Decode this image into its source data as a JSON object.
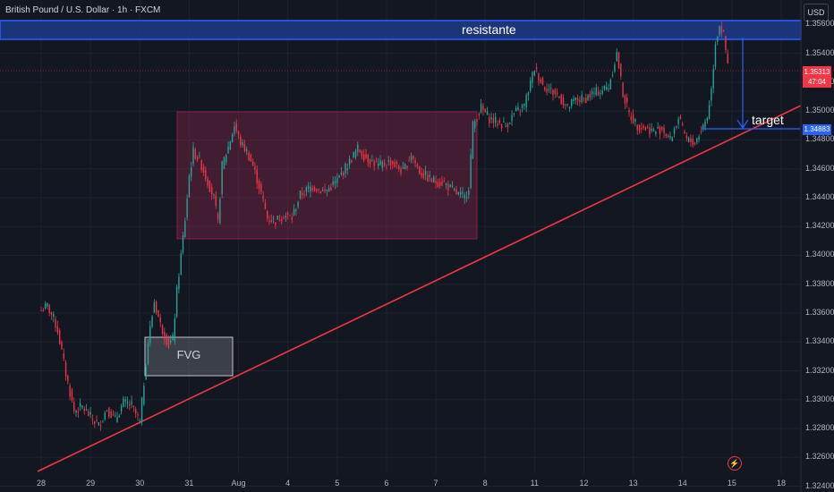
{
  "header": {
    "symbol_title": "British Pound / U.S. Dollar · 1h · FXCM",
    "currency_button": "USD"
  },
  "annotations": {
    "resistance_label": "resistante",
    "target_label": "target",
    "fvg_label": "FVG"
  },
  "price_scale": {
    "last_price": "1.35313",
    "countdown": "47:04",
    "target_price": "1.34883"
  },
  "colors": {
    "background": "#131722",
    "bull": "#26a69a",
    "bear": "#f23645",
    "trendline": "#f23645",
    "resistance_fill": "#1e3a8a",
    "resistance_border": "#2962ff",
    "range_box": "#9c2750",
    "fvg_box": "#5d606b"
  },
  "icons": {
    "replay": "lightning-icon"
  },
  "chart_data": {
    "type": "candlestick",
    "y_ticks": [
      "1.35600",
      "1.35400",
      "1.35200",
      "1.35000",
      "1.34800",
      "1.34600",
      "1.34400",
      "1.34200",
      "1.34000",
      "1.33800",
      "1.33600",
      "1.33400",
      "1.33200",
      "1.33000",
      "1.32800",
      "1.32600",
      "1.32400"
    ],
    "y_tick_values": [
      1.356,
      1.354,
      1.352,
      1.35,
      1.348,
      1.346,
      1.344,
      1.342,
      1.34,
      1.338,
      1.336,
      1.334,
      1.332,
      1.33,
      1.328,
      1.326,
      1.324
    ],
    "ylim": [
      1.3236,
      1.3577
    ],
    "x_ticks": [
      "28",
      "29",
      "30",
      "31",
      "Aug",
      "4",
      "5",
      "6",
      "7",
      "8",
      "11",
      "12",
      "13",
      "14",
      "15",
      "18"
    ],
    "x_tick_index": [
      0,
      24,
      48,
      72,
      96,
      120,
      144,
      168,
      192,
      216,
      240,
      264,
      288,
      312,
      336,
      360
    ],
    "path_points": [
      [
        0,
        1.3362
      ],
      [
        3,
        1.3365
      ],
      [
        6,
        1.3356
      ],
      [
        8,
        1.3348
      ],
      [
        12,
        1.3318
      ],
      [
        16,
        1.3292
      ],
      [
        20,
        1.3295
      ],
      [
        24,
        1.3288
      ],
      [
        28,
        1.3282
      ],
      [
        32,
        1.3294
      ],
      [
        36,
        1.3286
      ],
      [
        40,
        1.3298
      ],
      [
        44,
        1.3296
      ],
      [
        48,
        1.3284
      ],
      [
        50,
        1.3312
      ],
      [
        52,
        1.334
      ],
      [
        55,
        1.3368
      ],
      [
        58,
        1.3352
      ],
      [
        60,
        1.3345
      ],
      [
        62,
        1.3338
      ],
      [
        64,
        1.3342
      ],
      [
        66,
        1.3375
      ],
      [
        68,
        1.34
      ],
      [
        70,
        1.3425
      ],
      [
        72,
        1.3455
      ],
      [
        74,
        1.3472
      ],
      [
        77,
        1.3466
      ],
      [
        80,
        1.3455
      ],
      [
        84,
        1.344
      ],
      [
        86,
        1.3422
      ],
      [
        88,
        1.3462
      ],
      [
        91,
        1.3475
      ],
      [
        94,
        1.349
      ],
      [
        97,
        1.3478
      ],
      [
        100,
        1.3472
      ],
      [
        103,
        1.3462
      ],
      [
        106,
        1.3448
      ],
      [
        110,
        1.3426
      ],
      [
        114,
        1.3424
      ],
      [
        118,
        1.3428
      ],
      [
        122,
        1.3426
      ],
      [
        126,
        1.3442
      ],
      [
        132,
        1.3448
      ],
      [
        138,
        1.3444
      ],
      [
        144,
        1.3452
      ],
      [
        150,
        1.3465
      ],
      [
        154,
        1.3474
      ],
      [
        158,
        1.3468
      ],
      [
        164,
        1.3462
      ],
      [
        170,
        1.3465
      ],
      [
        176,
        1.3458
      ],
      [
        180,
        1.347
      ],
      [
        184,
        1.3458
      ],
      [
        190,
        1.3452
      ],
      [
        196,
        1.345
      ],
      [
        202,
        1.3443
      ],
      [
        206,
        1.344
      ],
      [
        208,
        1.3448
      ],
      [
        210,
        1.349
      ],
      [
        214,
        1.3502
      ],
      [
        218,
        1.3495
      ],
      [
        222,
        1.3492
      ],
      [
        226,
        1.349
      ],
      [
        230,
        1.3498
      ],
      [
        235,
        1.3504
      ],
      [
        240,
        1.353
      ],
      [
        244,
        1.3518
      ],
      [
        248,
        1.3514
      ],
      [
        252,
        1.351
      ],
      [
        256,
        1.3502
      ],
      [
        260,
        1.3508
      ],
      [
        264,
        1.3508
      ],
      [
        268,
        1.3512
      ],
      [
        272,
        1.3514
      ],
      [
        276,
        1.3517
      ],
      [
        280,
        1.354
      ],
      [
        283,
        1.3512
      ],
      [
        286,
        1.3498
      ],
      [
        290,
        1.349
      ],
      [
        294,
        1.3488
      ],
      [
        298,
        1.3486
      ],
      [
        302,
        1.3488
      ],
      [
        306,
        1.348
      ],
      [
        310,
        1.3495
      ],
      [
        314,
        1.348
      ],
      [
        318,
        1.3478
      ],
      [
        322,
        1.349
      ],
      [
        324,
        1.3496
      ],
      [
        326,
        1.3515
      ],
      [
        328,
        1.3548
      ],
      [
        330,
        1.356
      ],
      [
        332,
        1.3552
      ],
      [
        334,
        1.3531
      ]
    ]
  }
}
